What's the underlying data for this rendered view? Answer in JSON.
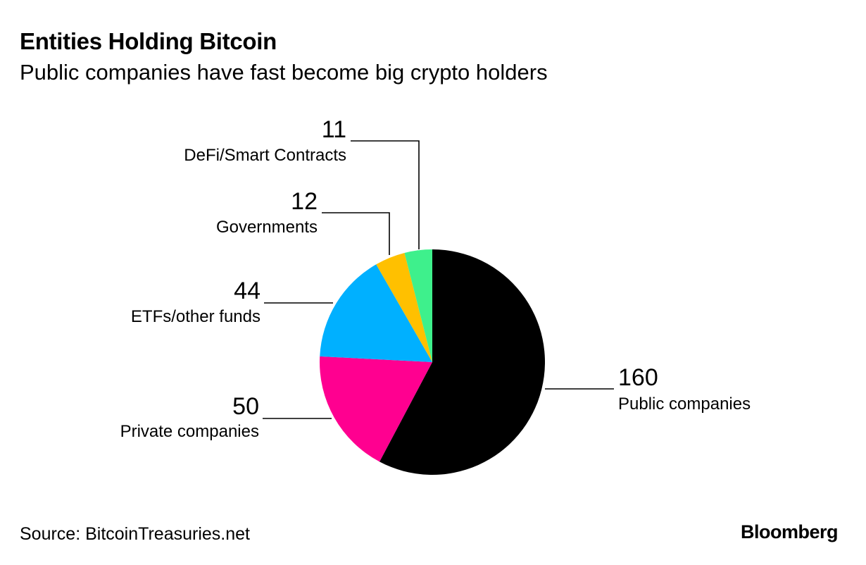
{
  "header": {
    "title": "Entities Holding Bitcoin",
    "subtitle": "Public companies have fast become big crypto holders"
  },
  "footer": {
    "source": "Source: BitcoinTreasuries.net",
    "brand": "Bloomberg"
  },
  "chart_data": {
    "type": "pie",
    "title": "Entities Holding Bitcoin",
    "subtitle": "Public companies have fast become big crypto holders",
    "start_angle_deg": 0,
    "direction": "clockwise",
    "slices": [
      {
        "label": "Public companies",
        "value": 160,
        "color": "#000000"
      },
      {
        "label": "Private companies",
        "value": 50,
        "color": "#ff0090"
      },
      {
        "label": "ETFs/other funds",
        "value": 44,
        "color": "#00b0ff"
      },
      {
        "label": "Governments",
        "value": 12,
        "color": "#ffc000"
      },
      {
        "label": "DeFi/Smart Contracts",
        "value": 11,
        "color": "#3ef08c"
      }
    ],
    "legend": "none",
    "source": "Source: BitcoinTreasuries.net"
  }
}
